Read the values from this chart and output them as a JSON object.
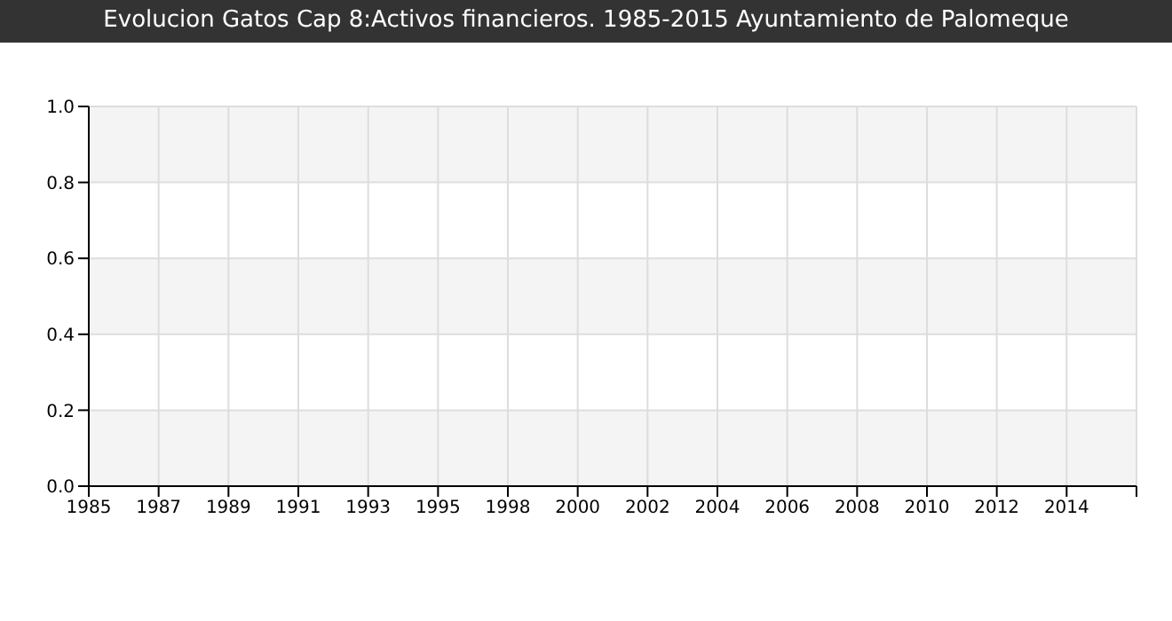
{
  "chart_data": {
    "type": "line",
    "title": "Evolucion Gatos Cap 8:Activos financieros. 1985-2015 Ayuntamiento de Palomeque",
    "categories": [
      "1985",
      "1987",
      "1989",
      "1991",
      "1993",
      "1995",
      "1998",
      "2000",
      "2002",
      "2004",
      "2006",
      "2008",
      "2010",
      "2012",
      "2014",
      null
    ],
    "values": [
      null,
      null,
      null,
      null,
      null,
      null,
      null,
      null,
      null,
      null,
      null,
      null,
      null,
      null,
      null,
      null
    ],
    "ylim": [
      0,
      1
    ],
    "yticks": [
      {
        "value": 0,
        "label": "0.0"
      },
      {
        "value": 0.2,
        "label": "0.2"
      },
      {
        "value": 0.4,
        "label": "0.4"
      },
      {
        "value": 0.6,
        "label": "0.6"
      },
      {
        "value": 0.8,
        "label": "0.8"
      },
      {
        "value": 1,
        "label": "1.0"
      }
    ],
    "grid": true
  }
}
